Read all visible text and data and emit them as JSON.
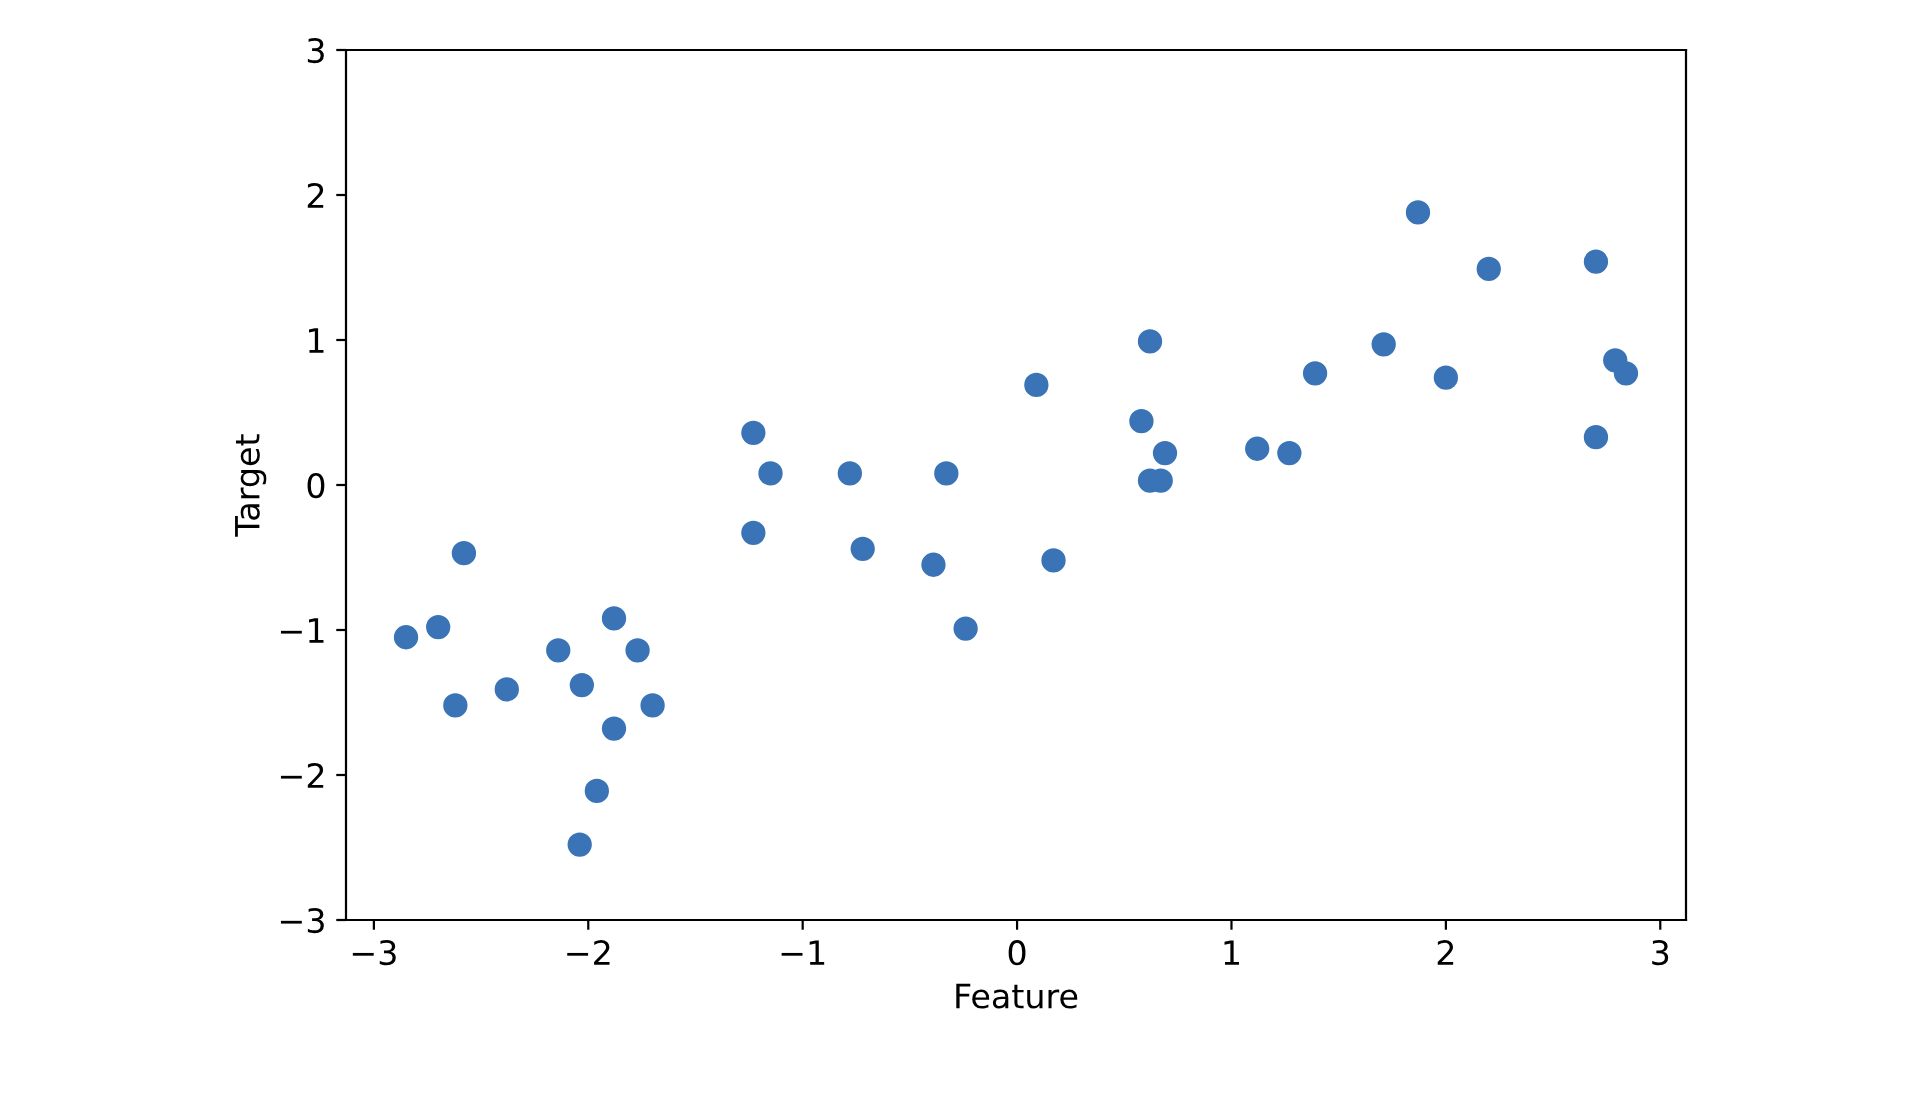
{
  "chart_data": {
    "type": "scatter",
    "xlabel": "Feature",
    "ylabel": "Target",
    "xlim": [
      -3.13,
      3.12
    ],
    "ylim": [
      -3,
      3
    ],
    "xticks": [
      {
        "value": -3,
        "label": "−3"
      },
      {
        "value": -2,
        "label": "−2"
      },
      {
        "value": -1,
        "label": "−1"
      },
      0,
      1,
      2,
      3
    ],
    "yticks": [
      {
        "value": -3,
        "label": "−3"
      },
      {
        "value": -2,
        "label": "−2"
      },
      {
        "value": -1,
        "label": "−1"
      },
      0,
      1,
      2,
      3
    ],
    "marker": "circle",
    "grid": false,
    "legend": false,
    "series": [
      {
        "color": "#3a74b7",
        "x": [
          -2.85,
          -2.7,
          -2.62,
          -2.58,
          -2.38,
          -2.14,
          -2.03,
          -1.96,
          -2.04,
          -1.88,
          -1.88,
          -1.77,
          -1.7,
          -1.23,
          -1.23,
          -1.15,
          -0.78,
          -0.72,
          -0.39,
          -0.33,
          -0.24,
          0.09,
          0.17,
          0.58,
          0.62,
          0.62,
          0.67,
          0.69,
          1.12,
          1.27,
          1.39,
          1.71,
          1.87,
          2.0,
          2.2,
          2.7,
          2.7,
          2.79,
          2.84
        ],
        "values": [
          -1.05,
          -0.98,
          -1.52,
          -0.47,
          -1.41,
          -1.14,
          -1.38,
          -2.11,
          -2.48,
          -0.92,
          -1.68,
          -1.14,
          -1.52,
          0.36,
          -0.33,
          0.08,
          0.08,
          -0.44,
          -0.55,
          0.08,
          -0.99,
          0.69,
          -0.52,
          0.44,
          0.99,
          0.03,
          0.03,
          0.22,
          0.25,
          0.22,
          0.77,
          0.97,
          1.88,
          0.74,
          1.49,
          1.54,
          0.33,
          0.86,
          0.77
        ]
      }
    ]
  }
}
